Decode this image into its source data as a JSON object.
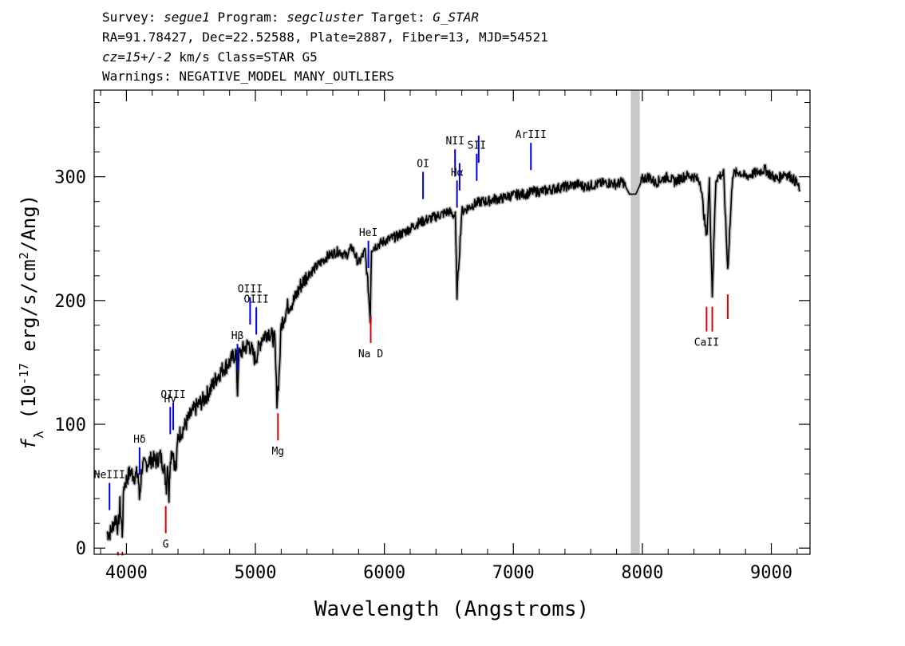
{
  "header": {
    "line1": {
      "survey_label": "Survey: ",
      "survey": "segue1",
      "program_label": " Program: ",
      "program": "segcluster",
      "target_label": " Target: ",
      "target": "G_STAR"
    },
    "line2": "RA=91.78427, Dec=22.52588, Plate=2887, Fiber=13, MJD=54521",
    "line3": {
      "cz": "cz=15+/-2",
      "rest": " km/s Class=STAR G5"
    },
    "line4": "Warnings: NEGATIVE_MODEL MANY_OUTLIERS"
  },
  "chart_data": {
    "type": "line",
    "xlabel": "Wavelength (Angstroms)",
    "ylabel": "f_λ (10^-17 erg/s/cm^2/Ang)",
    "xlim": [
      3750,
      9300
    ],
    "ylim": [
      -5,
      370
    ],
    "xticks": [
      "4000",
      "5000",
      "6000",
      "7000",
      "8000",
      "9000"
    ],
    "yticks": [
      "0",
      "100",
      "200",
      "300"
    ],
    "masked_band": [
      7910,
      7980
    ],
    "series": [
      {
        "color": "#000000",
        "x": [
          3850,
          3880,
          3900,
          3920,
          3935,
          3950,
          3968,
          3980,
          4000,
          4030,
          4060,
          4090,
          4101,
          4120,
          4150,
          4200,
          4230,
          4260,
          4290,
          4310,
          4320,
          4330,
          4340,
          4360,
          4383,
          4400,
          4450,
          4500,
          4550,
          4600,
          4650,
          4700,
          4750,
          4800,
          4850,
          4861,
          4870,
          4900,
          4950,
          5000,
          5050,
          5100,
          5150,
          5167,
          5183,
          5200,
          5250,
          5300,
          5350,
          5400,
          5450,
          5500,
          5550,
          5600,
          5650,
          5700,
          5750,
          5800,
          5850,
          5875,
          5890,
          5900,
          5950,
          6000,
          6050,
          6100,
          6150,
          6200,
          6250,
          6300,
          6350,
          6400,
          6450,
          6500,
          6550,
          6563,
          6600,
          6650,
          6700,
          6750,
          6800,
          6850,
          6900,
          6950,
          7000,
          7050,
          7100,
          7150,
          7200,
          7250,
          7300,
          7350,
          7400,
          7450,
          7500,
          7550,
          7600,
          7650,
          7700,
          7750,
          7800,
          7850,
          7900,
          7950,
          8000,
          8050,
          8100,
          8150,
          8200,
          8250,
          8300,
          8350,
          8400,
          8450,
          8498,
          8520,
          8542,
          8570,
          8600,
          8630,
          8662,
          8700,
          8750,
          8800,
          8850,
          8900,
          8950,
          9000,
          9050,
          9100,
          9150,
          9200,
          9220
        ],
        "y": [
          12,
          13,
          20,
          25,
          15,
          35,
          12,
          50,
          55,
          62,
          58,
          60,
          40,
          65,
          68,
          72,
          70,
          75,
          66,
          50,
          72,
          40,
          74,
          80,
          60,
          90,
          98,
          108,
          115,
          120,
          128,
          138,
          145,
          150,
          158,
          125,
          155,
          160,
          165,
          152,
          170,
          175,
          168,
          120,
          138,
          180,
          195,
          200,
          212,
          220,
          225,
          230,
          235,
          238,
          240,
          236,
          243,
          230,
          240,
          210,
          185,
          242,
          245,
          248,
          250,
          252,
          255,
          258,
          262,
          264,
          266,
          268,
          270,
          272,
          268,
          205,
          272,
          275,
          278,
          280,
          280,
          282,
          282,
          284,
          285,
          286,
          286,
          288,
          288,
          289,
          290,
          291,
          292,
          293,
          294,
          292,
          293,
          294,
          295,
          295,
          294,
          296,
          286,
          286,
          298,
          300,
          295,
          298,
          300,
          296,
          299,
          301,
          300,
          296,
          250,
          296,
          205,
          298,
          301,
          302,
          225,
          302,
          304,
          300,
          302,
          304,
          306,
          301,
          298,
          303,
          300,
          295,
          288
        ]
      }
    ],
    "lines_emission": [
      {
        "label": "NeIII",
        "x": 3869
      },
      {
        "label": "Hδ",
        "x": 4102
      },
      {
        "label": "Hγ",
        "x": 4340
      },
      {
        "label": "OIII",
        "x": 4363
      },
      {
        "label": "Hβ",
        "x": 4861
      },
      {
        "label": "OIII",
        "x": 4959
      },
      {
        "label": "OIII",
        "x": 5007
      },
      {
        "label": "HeI",
        "x": 5876
      },
      {
        "label": "OI",
        "x": 6300
      },
      {
        "label": "NII",
        "x": 6548
      },
      {
        "label": "Hα",
        "x": 6563
      },
      {
        "label": "NII",
        "x": 6583
      },
      {
        "label": "SII",
        "x": 6716
      },
      {
        "label": "SII",
        "x": 6731
      },
      {
        "label": "ArIII",
        "x": 7136
      }
    ],
    "lines_absorption": [
      {
        "label": "",
        "x": 3934
      },
      {
        "label": "",
        "x": 3969
      },
      {
        "label": "G",
        "x": 4305
      },
      {
        "label": "Mg",
        "x": 5175
      },
      {
        "label": "Na D",
        "x": 5894
      },
      {
        "label": "CaII",
        "x": 8498
      },
      {
        "label": "",
        "x": 8542
      },
      {
        "label": "",
        "x": 8662
      }
    ],
    "colors": {
      "spectrum": "#000000",
      "error_band": "#bbbbbb",
      "emission": "#0000dd",
      "absorption": "#dd0000",
      "masked": "#c8c8c8"
    }
  }
}
